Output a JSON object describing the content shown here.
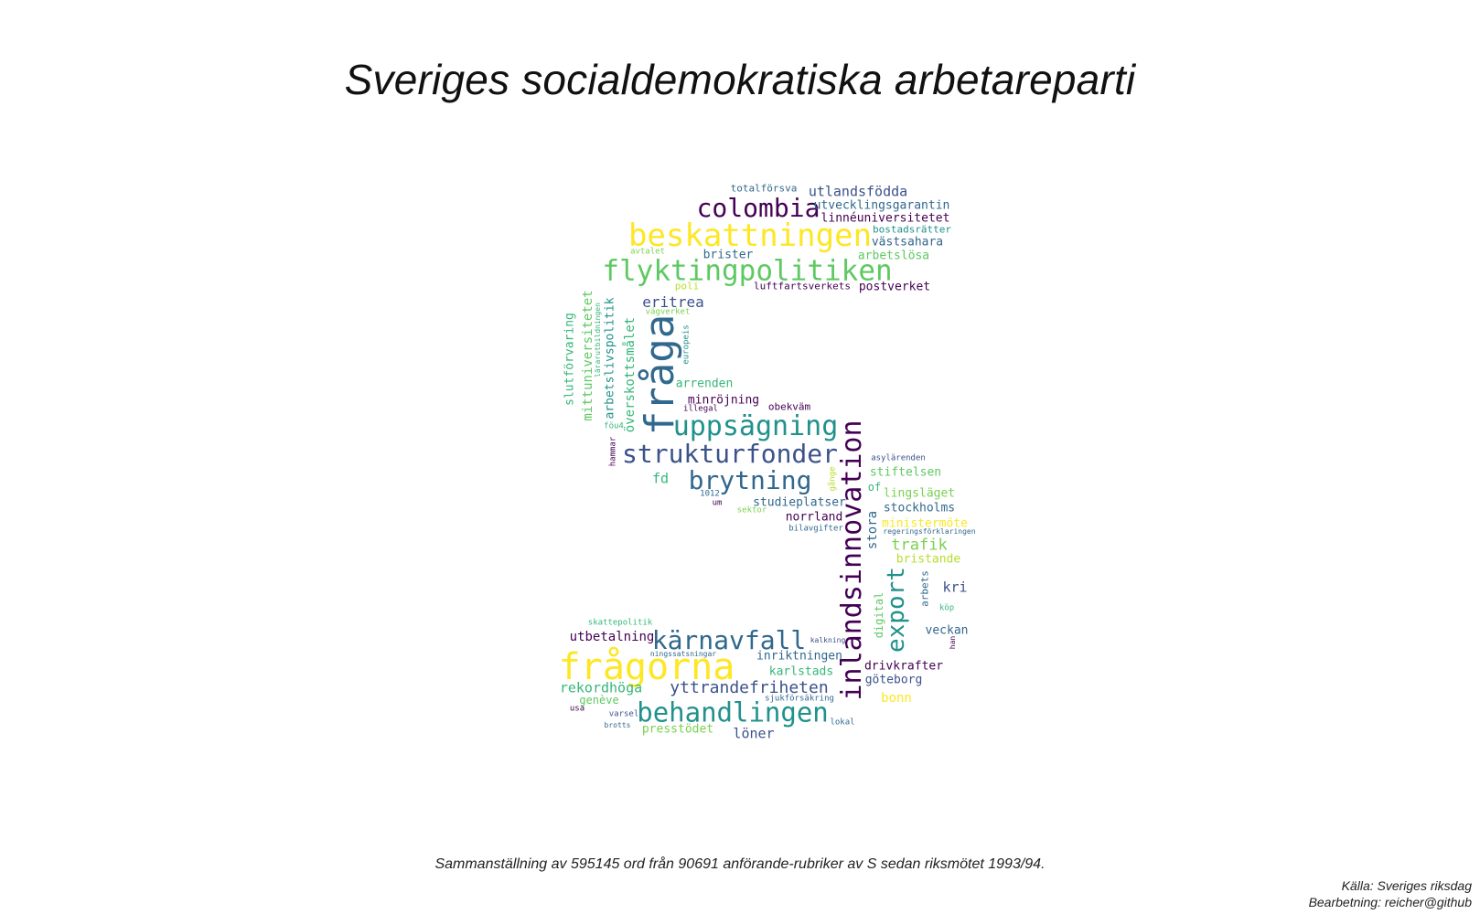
{
  "title": "Sveriges socialdemokratiska arbetareparti",
  "caption": "Sammanställning av 595145 ord från 90691 anförande-rubriker av S sedan riksmötet 1993/94.",
  "source": "Källa: Sveriges riksdag",
  "processing": "Bearbetning: reicher@github",
  "words": [
    {
      "text": "frågorna",
      "color": "#fde725"
    },
    {
      "text": "fråga",
      "color": "#31688e"
    },
    {
      "text": "beskattningen",
      "color": "#fde725"
    },
    {
      "text": "inlandsinnovation",
      "color": "#440154"
    },
    {
      "text": "flyktingpolitiken",
      "color": "#5ec962"
    },
    {
      "text": "uppsägning",
      "color": "#21918c"
    },
    {
      "text": "strukturfonder",
      "color": "#3b528b"
    },
    {
      "text": "behandlingen",
      "color": "#21918c"
    },
    {
      "text": "kärnavfall",
      "color": "#31688e"
    },
    {
      "text": "brytning",
      "color": "#31688e"
    },
    {
      "text": "colombia",
      "color": "#440154"
    },
    {
      "text": "export",
      "color": "#21918c"
    },
    {
      "text": "utlandsfödda",
      "color": "#3b528b"
    },
    {
      "text": "yttrandefriheten",
      "color": "#3b528b"
    },
    {
      "text": "eritrea",
      "color": "#3b528b"
    },
    {
      "text": "utvecklingsgarantin",
      "color": "#31688e"
    },
    {
      "text": "linnéuniversitetet",
      "color": "#440154"
    },
    {
      "text": "postverket",
      "color": "#440154"
    },
    {
      "text": "trafik",
      "color": "#7ad151"
    },
    {
      "text": "mittuniversitetet",
      "color": "#5ec962"
    },
    {
      "text": "överskottsmålet",
      "color": "#35b779"
    },
    {
      "text": "slutförvaring",
      "color": "#35b779"
    },
    {
      "text": "arbetslivspolitik",
      "color": "#21918c"
    },
    {
      "text": "fd",
      "color": "#35b779"
    },
    {
      "text": "stora",
      "color": "#31688e"
    },
    {
      "text": "rekordhöga",
      "color": "#35b779"
    },
    {
      "text": "löner",
      "color": "#3b528b"
    },
    {
      "text": "västsahara",
      "color": "#31688e"
    },
    {
      "text": "arbetslösa",
      "color": "#5ec962"
    },
    {
      "text": "brister",
      "color": "#31688e"
    },
    {
      "text": "arrenden",
      "color": "#35b779"
    },
    {
      "text": "minröjning",
      "color": "#440154"
    },
    {
      "text": "utbetalning",
      "color": "#440154"
    },
    {
      "text": "inriktningen",
      "color": "#31688e"
    },
    {
      "text": "karlstads",
      "color": "#35b779"
    },
    {
      "text": "drivkrafter",
      "color": "#440154"
    },
    {
      "text": "göteborg",
      "color": "#3b528b"
    },
    {
      "text": "bonn",
      "color": "#fde725"
    },
    {
      "text": "presstödet",
      "color": "#7ad151"
    },
    {
      "text": "stiftelsen",
      "color": "#5ec962"
    },
    {
      "text": "lingsläget",
      "color": "#7ad151"
    },
    {
      "text": "stockholms",
      "color": "#31688e"
    },
    {
      "text": "studieplatser",
      "color": "#31688e"
    },
    {
      "text": "norrland",
      "color": "#440154"
    },
    {
      "text": "ministermöte",
      "color": "#fde725"
    },
    {
      "text": "bristande",
      "color": "#b5de2b"
    },
    {
      "text": "kri",
      "color": "#3b528b"
    },
    {
      "text": "veckan",
      "color": "#31688e"
    },
    {
      "text": "digital",
      "color": "#5ec962"
    },
    {
      "text": "arbets",
      "color": "#31688e"
    },
    {
      "text": "of",
      "color": "#35b779"
    },
    {
      "text": "totalförsva",
      "color": "#31688e"
    },
    {
      "text": "bostadsrätter",
      "color": "#21918c"
    },
    {
      "text": "luftfartsverkets",
      "color": "#440154"
    },
    {
      "text": "obekväm",
      "color": "#440154"
    },
    {
      "text": "genève",
      "color": "#5ec962"
    },
    {
      "text": "avtalet",
      "color": "#7ad151"
    },
    {
      "text": "poli",
      "color": "#b5de2b"
    },
    {
      "text": "vägverket",
      "color": "#7ad151"
    },
    {
      "text": "europeis",
      "color": "#21918c"
    },
    {
      "text": "lärarutbildningen",
      "color": "#35b779"
    },
    {
      "text": "illegal",
      "color": "#440154"
    },
    {
      "text": "föu4",
      "color": "#35b779"
    },
    {
      "text": "hammar",
      "color": "#440154"
    },
    {
      "text": "asylärenden",
      "color": "#3b528b"
    },
    {
      "text": "gånge",
      "color": "#b5de2b"
    },
    {
      "text": "1012",
      "color": "#31688e"
    },
    {
      "text": "um",
      "color": "#440154"
    },
    {
      "text": "sektor",
      "color": "#7ad151"
    },
    {
      "text": "bilavgifter",
      "color": "#31688e"
    },
    {
      "text": "regeringsförklaringen",
      "color": "#31688e"
    },
    {
      "text": "köp",
      "color": "#35b779"
    },
    {
      "text": "han",
      "color": "#440154"
    },
    {
      "text": "skattepolitik",
      "color": "#35b779"
    },
    {
      "text": "kalkning",
      "color": "#3b528b"
    },
    {
      "text": "ningssatsningar",
      "color": "#31688e"
    },
    {
      "text": "sjukförsäkring",
      "color": "#31688e"
    },
    {
      "text": "usa",
      "color": "#440154"
    },
    {
      "text": "varsel",
      "color": "#3b528b"
    },
    {
      "text": "brotts",
      "color": "#31688e"
    },
    {
      "text": "lokal",
      "color": "#31688e"
    }
  ]
}
